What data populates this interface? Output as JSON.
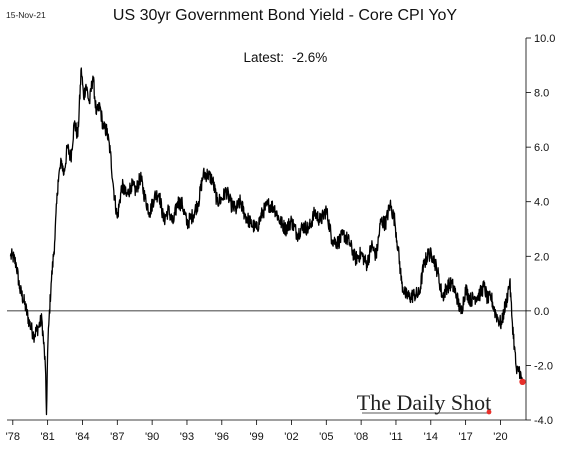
{
  "header": {
    "date_stamp": "15-Nov-21",
    "title": "US 30yr Government Bond Yield - Core CPI YoY",
    "latest_label": "Latest:",
    "latest_value": "-2.6%"
  },
  "watermark": {
    "text": "The Daily Shot"
  },
  "colors": {
    "line": "#000000",
    "last_point": "#e8302a",
    "zero_line": "#000000",
    "axis": "#000000"
  },
  "chart_data": {
    "type": "line",
    "title": "US 30yr Government Bond Yield - Core CPI YoY",
    "xlabel": "",
    "ylabel": "",
    "xlim": [
      1977.5,
      2022.2
    ],
    "ylim": [
      -4.0,
      10.0
    ],
    "y_axis_side": "right",
    "grid": false,
    "x_ticks": [
      1978,
      1981,
      1984,
      1987,
      1990,
      1993,
      1996,
      1999,
      2002,
      2005,
      2008,
      2011,
      2014,
      2017,
      2020
    ],
    "x_tick_labels": [
      "'78",
      "'81",
      "'84",
      "'87",
      "'90",
      "'93",
      "'96",
      "'99",
      "'02",
      "'05",
      "'08",
      "'11",
      "'14",
      "'17",
      "'20"
    ],
    "y_ticks": [
      -4,
      -2,
      0,
      2,
      4,
      6,
      8,
      10
    ],
    "y_tick_labels": [
      "-4.0",
      "-2.0",
      "0.0",
      "2.0",
      "4.0",
      "6.0",
      "8.0",
      "10.0"
    ],
    "reference_line": 0,
    "series": [
      {
        "x": [
          1977.8,
          1978.0,
          1978.3,
          1978.6,
          1979.0,
          1979.4,
          1979.8,
          1980.2,
          1980.5,
          1980.8,
          1980.9,
          1981.0,
          1981.1,
          1981.3,
          1981.6,
          1981.9,
          1982.2,
          1982.4,
          1982.7,
          1983.0,
          1983.3,
          1983.6,
          1983.9,
          1984.1,
          1984.3,
          1984.6,
          1984.9,
          1985.2,
          1985.5,
          1985.8,
          1986.1,
          1986.4,
          1986.7,
          1987.0,
          1987.4,
          1987.8,
          1988.2,
          1988.6,
          1989.0,
          1989.4,
          1989.8,
          1990.2,
          1990.6,
          1991.0,
          1991.4,
          1991.8,
          1992.2,
          1992.6,
          1993.0,
          1993.5,
          1994.0,
          1994.4,
          1994.8,
          1995.2,
          1995.6,
          1996.0,
          1996.4,
          1996.8,
          1997.2,
          1997.6,
          1998.0,
          1998.5,
          1999.0,
          1999.5,
          2000.0,
          2000.5,
          2001.0,
          2001.5,
          2002.0,
          2002.5,
          2003.0,
          2003.5,
          2004.0,
          2004.5,
          2005.0,
          2005.5,
          2006.0,
          2006.5,
          2007.0,
          2007.5,
          2008.0,
          2008.5,
          2008.9,
          2009.3,
          2009.7,
          2010.1,
          2010.5,
          2010.9,
          2011.2,
          2011.5,
          2011.8,
          2012.2,
          2012.6,
          2013.0,
          2013.4,
          2013.8,
          2014.2,
          2014.6,
          2015.0,
          2015.4,
          2015.8,
          2016.2,
          2016.6,
          2017.0,
          2017.4,
          2017.8,
          2018.2,
          2018.6,
          2018.9,
          2019.2,
          2019.5,
          2019.8,
          2020.1,
          2020.3,
          2020.5,
          2020.8,
          2021.0,
          2021.2,
          2021.4,
          2021.6,
          2021.8,
          2021.9
        ],
        "values": [
          2.0,
          2.0,
          1.7,
          0.8,
          0.3,
          -0.4,
          -0.9,
          -0.6,
          -0.3,
          -2.0,
          -3.8,
          -1.5,
          -0.5,
          1.0,
          2.5,
          4.8,
          5.5,
          5.0,
          6.0,
          5.6,
          6.9,
          6.4,
          8.9,
          7.8,
          8.3,
          7.6,
          8.6,
          7.2,
          7.5,
          6.7,
          6.6,
          5.8,
          4.4,
          3.4,
          4.6,
          4.2,
          4.6,
          4.4,
          4.9,
          4.1,
          3.6,
          4.2,
          4.3,
          3.3,
          3.7,
          3.2,
          4.0,
          3.9,
          3.2,
          3.5,
          4.0,
          5.0,
          5.0,
          4.8,
          4.0,
          4.1,
          4.4,
          3.9,
          3.7,
          4.0,
          3.5,
          3.2,
          3.0,
          3.6,
          3.9,
          3.8,
          3.3,
          3.0,
          3.3,
          2.8,
          3.1,
          3.0,
          3.6,
          3.3,
          3.7,
          2.6,
          2.5,
          2.8,
          2.5,
          1.9,
          2.1,
          1.7,
          2.4,
          2.0,
          3.3,
          3.2,
          3.9,
          3.3,
          2.2,
          1.0,
          0.6,
          0.5,
          0.6,
          0.6,
          1.7,
          2.1,
          2.0,
          1.4,
          0.5,
          0.9,
          1.0,
          0.6,
          -0.1,
          0.8,
          0.4,
          0.5,
          0.6,
          0.9,
          0.4,
          0.5,
          0.0,
          -0.3,
          -0.5,
          0.0,
          0.3,
          1.1,
          -0.3,
          -1.3,
          -2.3,
          -2.1,
          -2.5,
          -2.6
        ]
      }
    ]
  }
}
